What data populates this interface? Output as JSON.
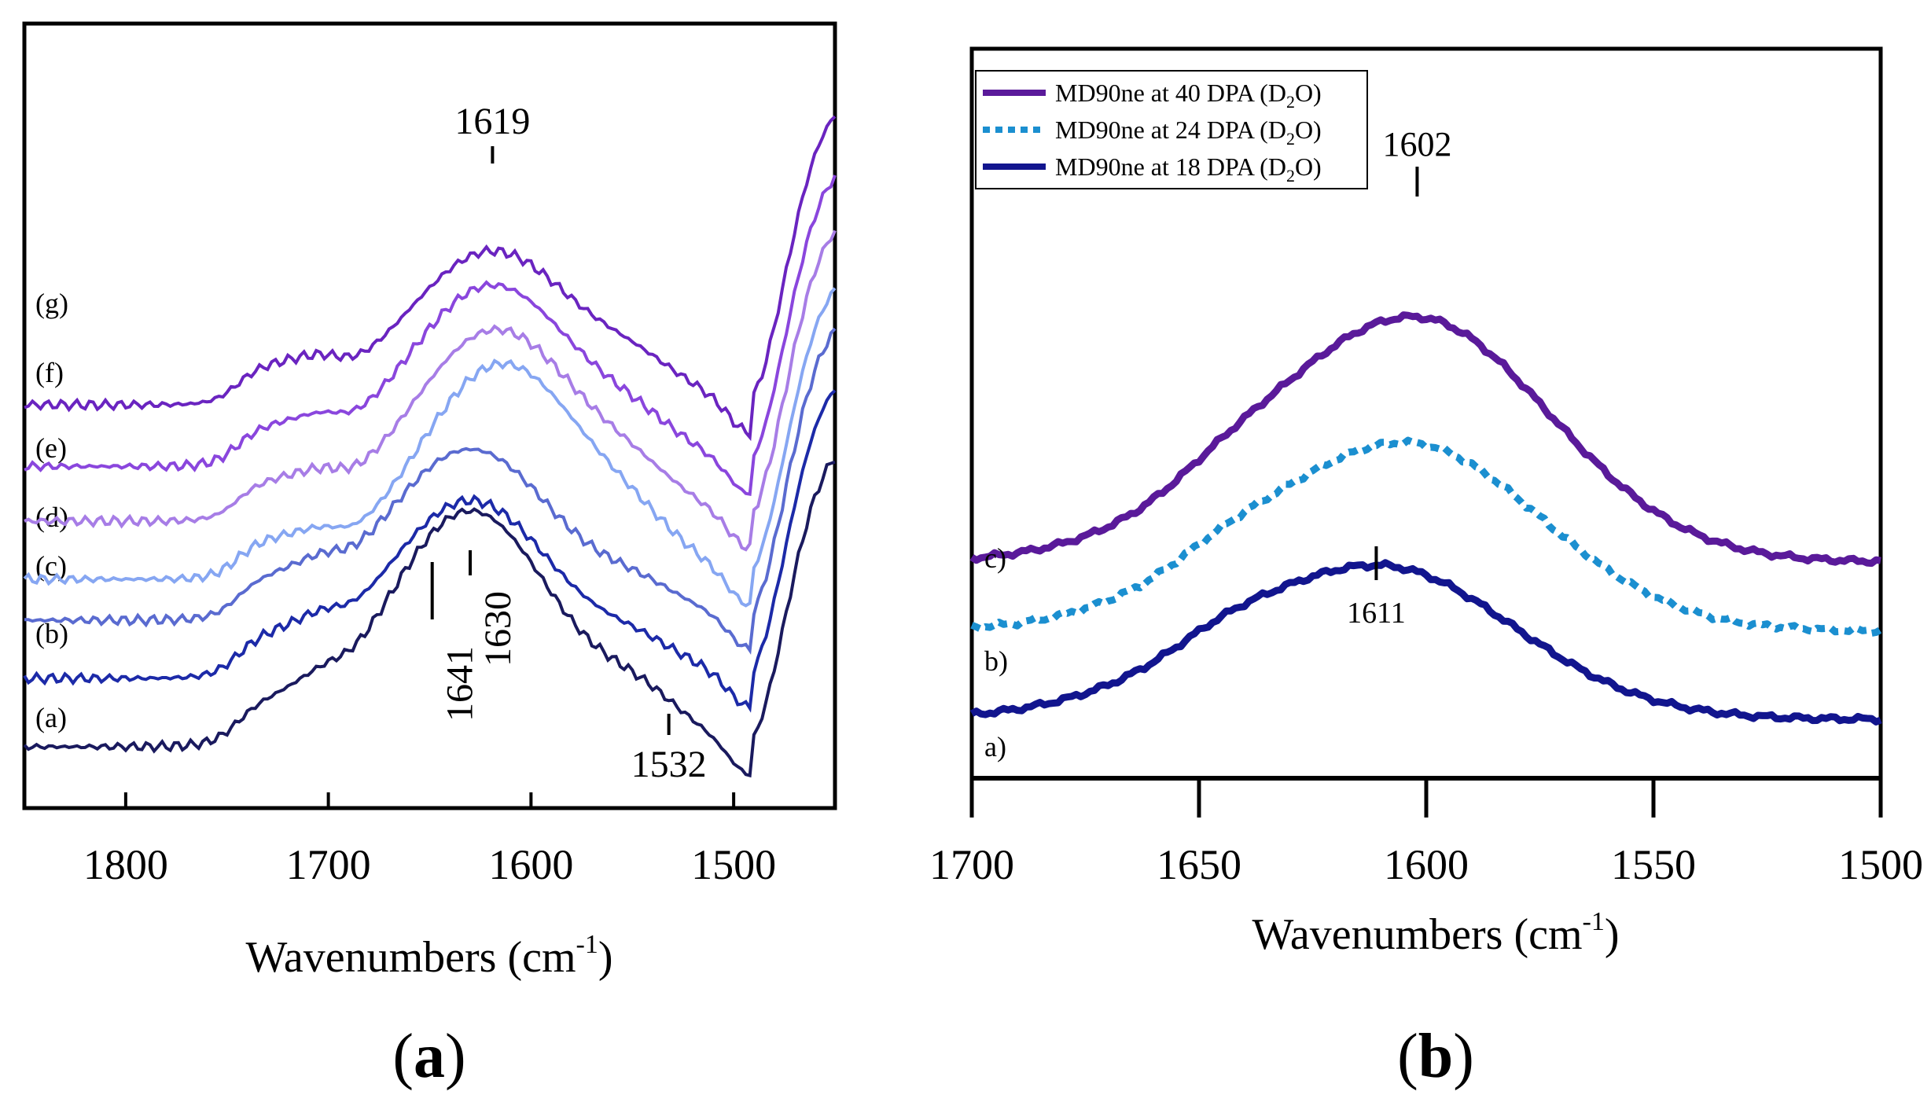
{
  "chart_data": [
    {
      "type": "line",
      "panel_label": "a",
      "xlabel": "Wavenumbers (cm",
      "xlabel_superscript": "-1",
      "xlabel_close": ")",
      "ylabel": "",
      "xlim": [
        1850,
        1450
      ],
      "x_ticks": [
        1800,
        1700,
        1600,
        1500
      ],
      "grid": false,
      "series": [
        {
          "name": "(a)",
          "color": "#1a1a5e",
          "offset": 0,
          "peak_x": 1630,
          "peak_h": 3.45
        },
        {
          "name": "(b)",
          "color": "#1c2aa8",
          "offset": 1,
          "peak_x": 1630,
          "peak_h": 2.6
        },
        {
          "name": "(c)",
          "color": "#5a6bd0",
          "offset": 1.85,
          "peak_x": 1630,
          "peak_h": 2.5
        },
        {
          "name": "(d)",
          "color": "#86a6f2",
          "offset": 2.45,
          "peak_x": 1614,
          "peak_h": 3.15
        },
        {
          "name": "(e)",
          "color": "#a77de6",
          "offset": 3.3,
          "peak_x": 1617,
          "peak_h": 2.8
        },
        {
          "name": "(f)",
          "color": "#8a46dd",
          "offset": 4.1,
          "peak_x": 1619,
          "peak_h": 2.65
        },
        {
          "name": "(g)",
          "color": "#6a24c0",
          "offset": 5.0,
          "peak_x": 1619,
          "peak_h": 2.25
        }
      ],
      "annotations": [
        {
          "text": "1619",
          "x": 1619
        },
        {
          "text": "1641",
          "x": 1641
        },
        {
          "text": "1630",
          "x": 1630
        },
        {
          "text": "1532",
          "x": 1532
        }
      ]
    },
    {
      "type": "line",
      "panel_label": "b",
      "xlabel": "Wavenumbers (cm",
      "xlabel_superscript": "-1",
      "xlabel_close": ")",
      "ylabel": "",
      "xlim": [
        1700,
        1500
      ],
      "x_ticks": [
        1700,
        1650,
        1600,
        1550,
        1500
      ],
      "grid": false,
      "legend_position": "top-left",
      "series": [
        {
          "name": "MD90ne at 40 DPA (D",
          "sub": "2",
          "tail": "O)",
          "trace_label": "c)",
          "color": "#5a1a9a",
          "style": "solid",
          "offset": 2.5,
          "peak_x": 1603,
          "peak_h": 3.9
        },
        {
          "name": "MD90ne at 24 DPA (D",
          "sub": "2",
          "tail": "O)",
          "trace_label": "b)",
          "color": "#1b8fd0",
          "style": "dotted",
          "offset": 1.4,
          "peak_x": 1605,
          "peak_h": 3.0
        },
        {
          "name": "MD90ne at 18 DPA (D",
          "sub": "2",
          "tail": "O)",
          "trace_label": "a)",
          "color": "#12158e",
          "style": "solid",
          "offset": 0,
          "peak_x": 1611,
          "peak_h": 2.45
        }
      ],
      "annotations": [
        {
          "text": "1602",
          "x": 1602
        },
        {
          "text": "1611",
          "x": 1611
        }
      ]
    }
  ]
}
